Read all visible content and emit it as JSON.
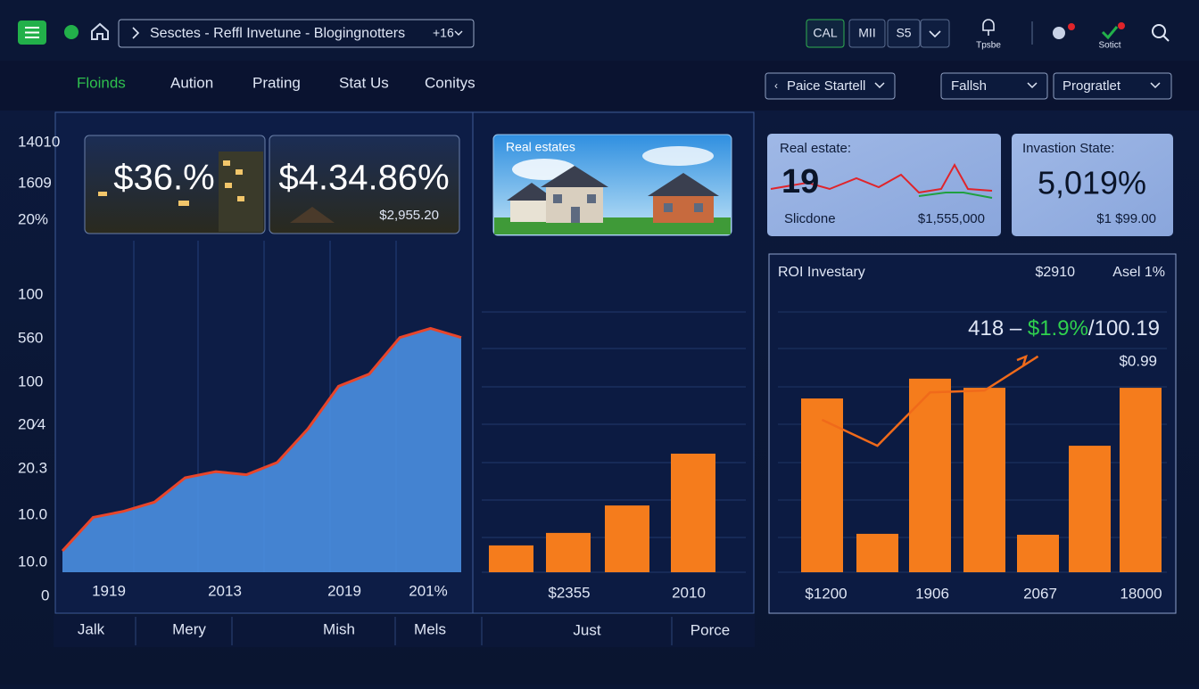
{
  "topbar": {
    "search": "Sesctes - Reffl Invetune - Blogingnotters",
    "search_count": "+16",
    "buttons": [
      "CAL",
      "MII",
      "S5"
    ],
    "icon_labels": [
      "Tpsbe",
      "Sotict"
    ]
  },
  "nav": {
    "tabs": [
      "Floinds",
      "Aution",
      "Prating",
      "Stat Us",
      "Conitys"
    ],
    "dropdowns": [
      "Paice Startell",
      "Fallsh",
      "Progratlet"
    ]
  },
  "panel1": {
    "y_labels": [
      "14010",
      "1609",
      "20%",
      "100",
      "560",
      "100",
      "20⁄4",
      "20.3",
      "10.0",
      "10.0",
      "0"
    ],
    "cards": [
      {
        "value": "$36.%"
      },
      {
        "value": "$4.34.86%",
        "sub": "$2,955.20"
      }
    ],
    "chart": {
      "type": "area",
      "values": [
        7,
        18,
        20,
        23,
        31,
        33,
        32,
        36,
        47,
        61,
        65,
        77,
        80,
        77
      ],
      "ylim": [
        0,
        100
      ],
      "color": "#4a8fe0",
      "line_color": "#e8452a"
    },
    "x_labels": [
      "1919",
      "2013",
      "2019",
      "201%"
    ],
    "footer": [
      "Jalk",
      "Mery",
      "Mish",
      "Mels"
    ]
  },
  "panel2": {
    "card_title": "Real estates",
    "chart": {
      "type": "bar",
      "values": [
        8.8,
        12.9,
        21.9,
        38.9
      ],
      "ylim": [
        0,
        100
      ],
      "color": "#f57c1c"
    },
    "x_labels": [
      "$2355",
      "2010"
    ],
    "footer": [
      "Just",
      "Porce"
    ]
  },
  "panel3": {
    "card1": {
      "title": "Real estate:",
      "value": "19",
      "label": "Slicdone",
      "amount": "$1,555,000"
    },
    "card2": {
      "title": "Invastion State:",
      "value": "5,019%",
      "amount": "$1 $99.00"
    },
    "roi": {
      "title": "ROI Investary",
      "stat1": "$2910",
      "stat2": "Asel 1%",
      "headline": {
        "left": "418 –",
        "green": "$1.9%",
        "right": "/100.19"
      },
      "sub": "$0.99",
      "chart": {
        "type": "bar",
        "values": [
          57,
          12.6,
          63.5,
          60.5,
          12.3,
          41.5,
          60.5
        ],
        "line_values": [
          50,
          41.5,
          59,
          59.6,
          70.8,
          null,
          null
        ],
        "ylim": [
          0,
          100
        ],
        "color": "#f57c1c",
        "line_color": "#f06a1a"
      },
      "x_labels": [
        "$1200",
        "1906",
        "2067",
        "18000"
      ]
    }
  }
}
